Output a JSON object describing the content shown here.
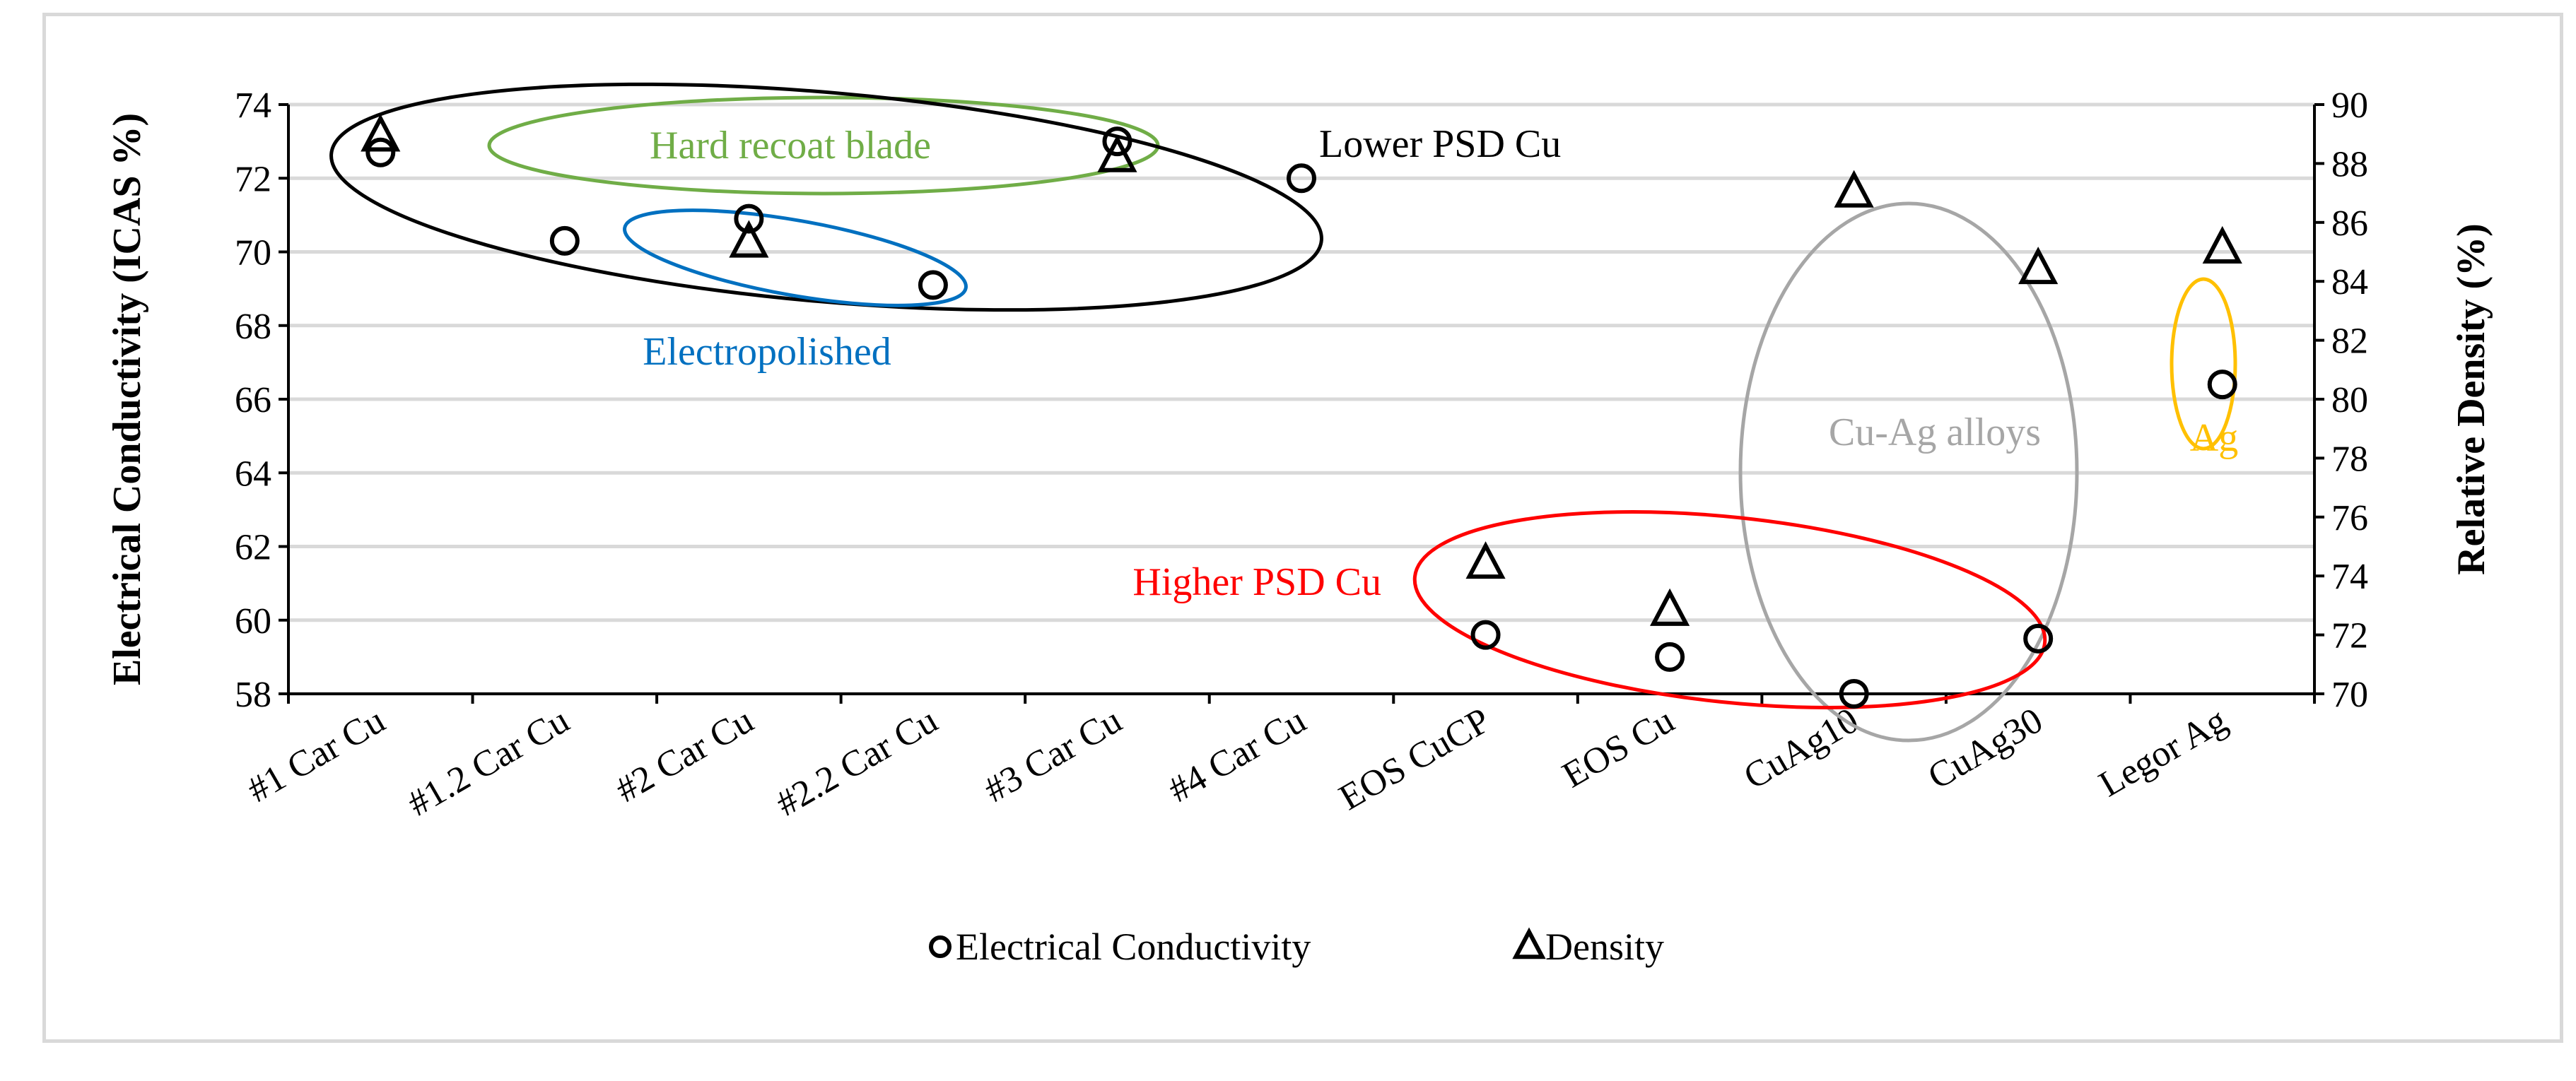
{
  "chart_data": {
    "type": "scatter",
    "categories": [
      "#1 Car Cu",
      "#1.2 Car Cu",
      "#2 Car Cu",
      "#2.2 Car Cu",
      "#3 Car Cu",
      "#4 Car Cu",
      "EOS CuCP",
      "EOS Cu",
      "CuAg10",
      "CuAg30",
      "Legor Ag"
    ],
    "y_left": {
      "label": "Electrical Conductivity (ICAS %)",
      "lim": [
        58,
        74
      ],
      "ticks": [
        58,
        60,
        62,
        64,
        66,
        68,
        70,
        72,
        74
      ]
    },
    "y_right": {
      "label": "Relative Density (%)",
      "lim": [
        70,
        90
      ],
      "ticks": [
        70,
        72,
        74,
        76,
        78,
        80,
        82,
        84,
        86,
        88,
        90
      ]
    },
    "series": [
      {
        "name": "Electrical Conductivity",
        "axis": "left",
        "marker": "circle",
        "values": [
          72.7,
          70.3,
          70.9,
          69.1,
          73.0,
          72.0,
          59.6,
          59.0,
          58.0,
          59.5,
          66.4
        ]
      },
      {
        "name": "Density",
        "axis": "right",
        "marker": "triangle",
        "values": [
          88.9,
          null,
          85.3,
          null,
          88.2,
          null,
          74.4,
          72.8,
          87.0,
          84.4,
          85.1
        ]
      }
    ],
    "annotations": [
      {
        "text": "Hard recoat blade",
        "color": "#70ad47"
      },
      {
        "text": "Lower PSD Cu",
        "color": "#000000"
      },
      {
        "text": "Electropolished",
        "color": "#0070c0"
      },
      {
        "text": "Cu-Ag alloys",
        "color": "#a6a6a6"
      },
      {
        "text": "Ag",
        "color": "#ffc000"
      },
      {
        "text": "Higher PSD Cu",
        "color": "#ff0000"
      }
    ],
    "legend_position": "bottom",
    "grid": true
  }
}
